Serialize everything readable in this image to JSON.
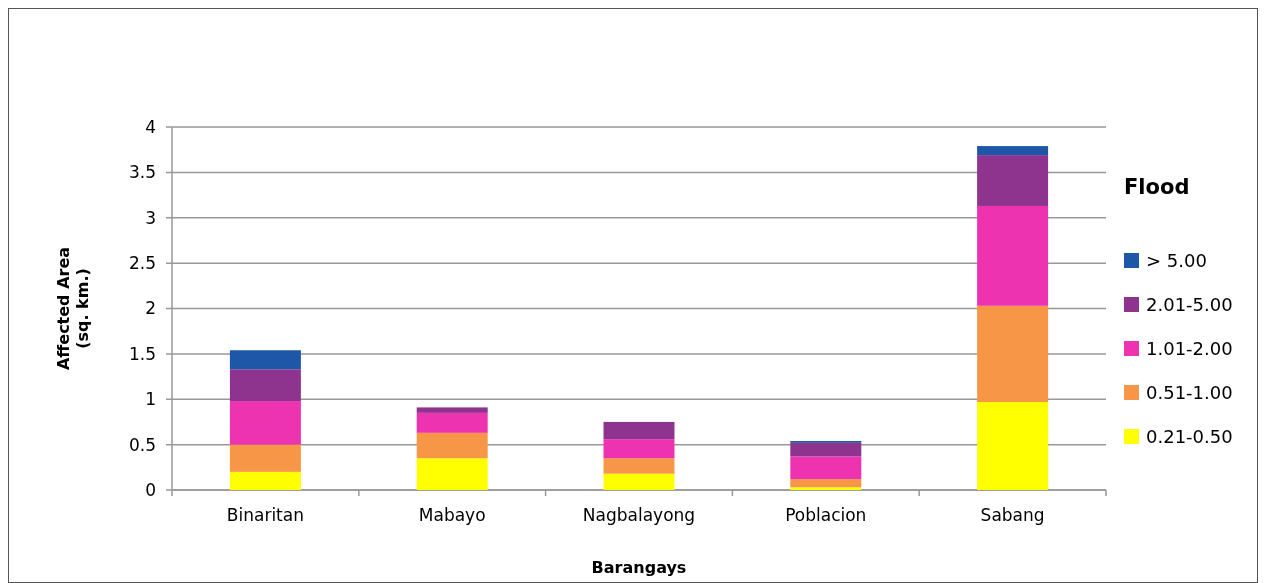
{
  "chart_data": {
    "type": "bar",
    "stacked": true,
    "xlabel": "Barangays",
    "ylabel": "Affected Area (sq. km.)",
    "legend_title": "Flood",
    "legend": "right",
    "categories": [
      "Binaritan",
      "Mabayo",
      "Nagbalayong",
      "Poblacion",
      "Sabang"
    ],
    "series": [
      {
        "name": "0.21-0.50",
        "color": "#ffff00",
        "values": [
          0.2,
          0.35,
          0.18,
          0.03,
          0.97
        ]
      },
      {
        "name": "0.51-1.00",
        "color": "#f79646",
        "values": [
          0.3,
          0.28,
          0.17,
          0.09,
          1.06
        ]
      },
      {
        "name": "1.01-2.00",
        "color": "#ee33b0",
        "values": [
          0.48,
          0.22,
          0.21,
          0.25,
          1.1
        ]
      },
      {
        "name": "2.01-5.00",
        "color": "#8e338e",
        "values": [
          0.35,
          0.06,
          0.19,
          0.15,
          0.56
        ]
      },
      {
        "name": "> 5.00",
        "color": "#1f57a8",
        "values": [
          0.21,
          0,
          0,
          0.02,
          0.1
        ]
      }
    ],
    "ylim": [
      0,
      4
    ],
    "yticks": [
      0,
      0.5,
      1,
      1.5,
      2,
      2.5,
      3,
      3.5,
      4
    ],
    "grid": "y"
  }
}
